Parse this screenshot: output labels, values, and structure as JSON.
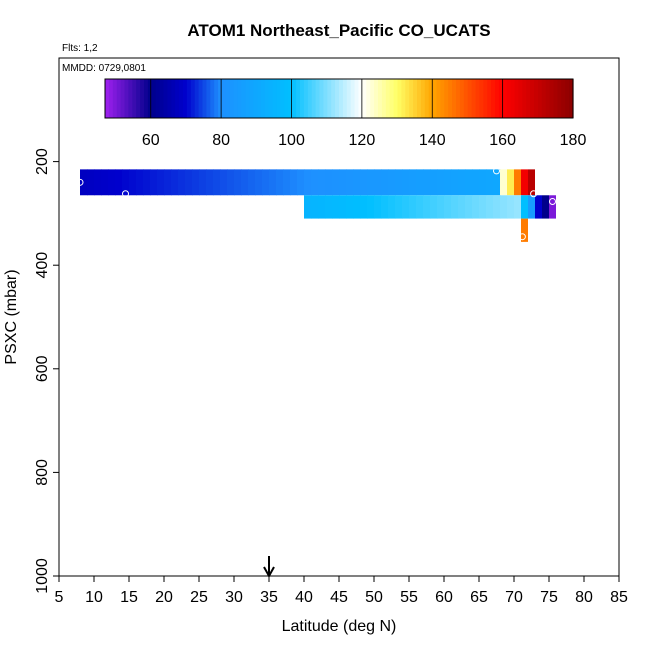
{
  "chart_data": {
    "type": "heatmap",
    "title": "ATOM1 Northeast_Pacific CO_UCATS",
    "flights_label": "Flts: 1,2",
    "dates_label": "MMDD: 0729,0801",
    "xlabel": "Latitude (deg N)",
    "ylabel": "PSXC (mbar)",
    "xlim": [
      5,
      85
    ],
    "ylim": [
      1000,
      0
    ],
    "x_ticks": [
      "5",
      "10",
      "15",
      "20",
      "25",
      "30",
      "35",
      "40",
      "45",
      "50",
      "55",
      "60",
      "65",
      "70",
      "75",
      "80",
      "85"
    ],
    "y_ticks": [
      "200",
      "400",
      "600",
      "800",
      "1000"
    ],
    "colorbar": {
      "range": [
        47,
        180
      ],
      "ticks": [
        "60",
        "80",
        "100",
        "120",
        "140",
        "160",
        "180"
      ],
      "stops": [
        {
          "v": 47,
          "c": "#a020f0"
        },
        {
          "v": 60,
          "c": "#00008b"
        },
        {
          "v": 70,
          "c": "#0000cd"
        },
        {
          "v": 80,
          "c": "#1e90ff"
        },
        {
          "v": 100,
          "c": "#00bfff"
        },
        {
          "v": 120,
          "c": "#ffffff"
        },
        {
          "v": 130,
          "c": "#ffff66"
        },
        {
          "v": 140,
          "c": "#ffa500"
        },
        {
          "v": 160,
          "c": "#ff0000"
        },
        {
          "v": 180,
          "c": "#8b0000"
        }
      ]
    },
    "arrow_latitude": 35,
    "cells": [
      {
        "lat0": 8,
        "lat1": 68,
        "p0": 215,
        "p1": 265,
        "v0": 68,
        "v1": 90
      },
      {
        "lat0": 68,
        "lat1": 69,
        "p0": 215,
        "p1": 265,
        "v": 123
      },
      {
        "lat0": 69,
        "lat1": 70,
        "p0": 215,
        "p1": 265,
        "v": 132
      },
      {
        "lat0": 70,
        "lat1": 71,
        "p0": 215,
        "p1": 265,
        "v": 145
      },
      {
        "lat0": 71,
        "lat1": 72,
        "p0": 215,
        "p1": 265,
        "v": 162
      },
      {
        "lat0": 72,
        "lat1": 73,
        "p0": 215,
        "p1": 265,
        "v": 172
      },
      {
        "lat0": 40,
        "lat1": 71,
        "p0": 265,
        "p1": 310,
        "v0": 95,
        "v1": 112
      },
      {
        "lat0": 71,
        "lat1": 72,
        "p0": 265,
        "p1": 310,
        "v": 100
      },
      {
        "lat0": 72,
        "lat1": 73,
        "p0": 265,
        "p1": 310,
        "v": 85
      },
      {
        "lat0": 73,
        "lat1": 74,
        "p0": 265,
        "p1": 310,
        "v": 70
      },
      {
        "lat0": 74,
        "lat1": 75,
        "p0": 265,
        "p1": 310,
        "v": 60
      },
      {
        "lat0": 75,
        "lat1": 76,
        "p0": 265,
        "p1": 310,
        "v": 50
      },
      {
        "lat0": 71,
        "lat1": 72,
        "p0": 310,
        "p1": 355,
        "v": 145
      }
    ],
    "points": [
      {
        "lat": 8,
        "p": 240
      },
      {
        "lat": 14.5,
        "p": 262
      },
      {
        "lat": 67.5,
        "p": 218
      },
      {
        "lat": 72.8,
        "p": 262
      },
      {
        "lat": 75.5,
        "p": 277
      },
      {
        "lat": 71.2,
        "p": 345
      }
    ]
  }
}
